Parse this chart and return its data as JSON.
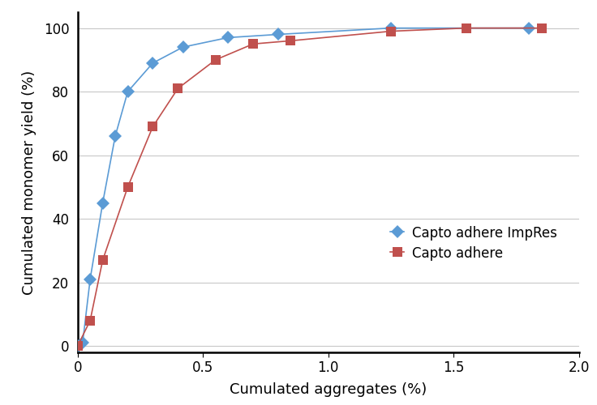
{
  "impres_x": [
    0.0,
    0.02,
    0.05,
    0.1,
    0.15,
    0.2,
    0.3,
    0.42,
    0.6,
    0.8,
    1.25,
    1.8
  ],
  "impres_y": [
    0.0,
    1.0,
    21.0,
    45.0,
    66.0,
    80.0,
    89.0,
    94.0,
    97.0,
    98.0,
    100.0,
    100.0
  ],
  "adhere_x": [
    0.0,
    0.05,
    0.1,
    0.2,
    0.3,
    0.4,
    0.55,
    0.7,
    0.85,
    1.25,
    1.55,
    1.85
  ],
  "adhere_y": [
    0.0,
    8.0,
    27.0,
    50.0,
    69.0,
    81.0,
    90.0,
    95.0,
    96.0,
    99.0,
    100.0,
    100.0
  ],
  "impres_color": "#5B9BD5",
  "adhere_color": "#C0504D",
  "xlabel": "Cumulated aggregates (%)",
  "ylabel": "Cumulated monomer yield (%)",
  "xlim": [
    0,
    2.0
  ],
  "ylim": [
    -2,
    105
  ],
  "xticks": [
    0,
    0.5,
    1.0,
    1.5,
    2.0
  ],
  "xtick_labels": [
    "0",
    "0.5",
    "1.0",
    "1.5",
    "2.0"
  ],
  "yticks": [
    0,
    20,
    40,
    60,
    80,
    100
  ],
  "legend_impres": "Capto adhere ImpRes",
  "legend_adhere": "Capto adhere",
  "bg_color": "#ffffff",
  "grid_color": "#c8c8c8"
}
